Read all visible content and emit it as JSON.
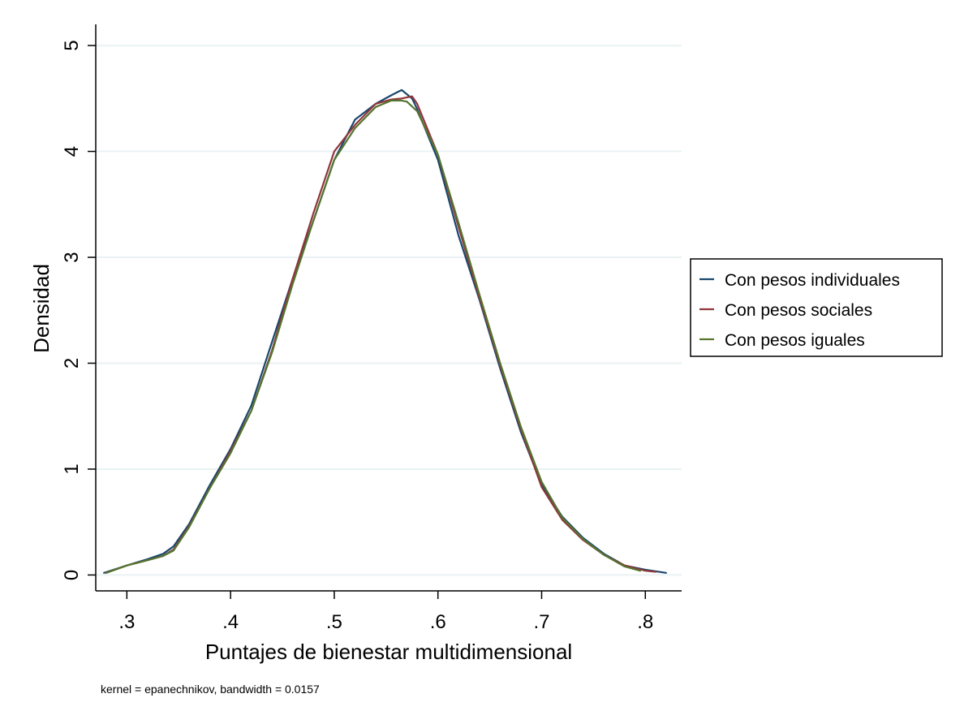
{
  "chart_data": {
    "type": "line",
    "title": "",
    "xlabel": "Puntajes de bienestar multidimensional",
    "ylabel": "Densidad",
    "xlim": [
      0.27,
      0.835
    ],
    "ylim": [
      -0.15,
      5.2
    ],
    "xticks": [
      0.3,
      0.4,
      0.5,
      0.6,
      0.7,
      0.8
    ],
    "xtick_labels": [
      ".3",
      ".4",
      ".5",
      ".6",
      ".7",
      ".8"
    ],
    "yticks": [
      0,
      1,
      2,
      3,
      4,
      5
    ],
    "ytick_labels": [
      "0",
      "1",
      "2",
      "3",
      "4",
      "5"
    ],
    "grid": "horizontal",
    "legend_position": "right",
    "note": "kernel = epanechnikov, bandwidth = 0.0157",
    "series": [
      {
        "name": "Con pesos individuales",
        "color": "#1a476f",
        "x": [
          0.278,
          0.3,
          0.32,
          0.335,
          0.345,
          0.36,
          0.38,
          0.4,
          0.42,
          0.44,
          0.46,
          0.48,
          0.5,
          0.52,
          0.54,
          0.555,
          0.565,
          0.575,
          0.58,
          0.6,
          0.62,
          0.64,
          0.66,
          0.68,
          0.7,
          0.72,
          0.74,
          0.76,
          0.78,
          0.8,
          0.82
        ],
        "y": [
          0.02,
          0.09,
          0.15,
          0.2,
          0.27,
          0.48,
          0.85,
          1.19,
          1.6,
          2.2,
          2.8,
          3.35,
          3.92,
          4.3,
          4.45,
          4.53,
          4.58,
          4.5,
          4.4,
          3.92,
          3.2,
          2.6,
          1.95,
          1.35,
          0.85,
          0.55,
          0.35,
          0.2,
          0.09,
          0.05,
          0.02
        ]
      },
      {
        "name": "Con pesos sociales",
        "color": "#90353b",
        "x": [
          0.28,
          0.3,
          0.32,
          0.335,
          0.345,
          0.36,
          0.38,
          0.4,
          0.42,
          0.44,
          0.46,
          0.48,
          0.5,
          0.52,
          0.54,
          0.555,
          0.565,
          0.575,
          0.58,
          0.6,
          0.62,
          0.64,
          0.66,
          0.68,
          0.7,
          0.72,
          0.74,
          0.76,
          0.78,
          0.8,
          0.81
        ],
        "y": [
          0.02,
          0.09,
          0.14,
          0.18,
          0.24,
          0.46,
          0.82,
          1.17,
          1.55,
          2.12,
          2.8,
          3.42,
          4.0,
          4.25,
          4.45,
          4.49,
          4.5,
          4.52,
          4.45,
          3.97,
          3.28,
          2.62,
          1.98,
          1.38,
          0.83,
          0.52,
          0.33,
          0.19,
          0.09,
          0.04,
          0.03
        ]
      },
      {
        "name": "Con pesos iguales",
        "color": "#55752f",
        "x": [
          0.28,
          0.3,
          0.32,
          0.335,
          0.345,
          0.36,
          0.38,
          0.4,
          0.42,
          0.44,
          0.46,
          0.48,
          0.5,
          0.52,
          0.54,
          0.555,
          0.565,
          0.57,
          0.58,
          0.6,
          0.62,
          0.64,
          0.66,
          0.68,
          0.7,
          0.72,
          0.74,
          0.76,
          0.78,
          0.795
        ],
        "y": [
          0.02,
          0.09,
          0.14,
          0.18,
          0.23,
          0.45,
          0.82,
          1.15,
          1.55,
          2.1,
          2.75,
          3.35,
          3.92,
          4.22,
          4.42,
          4.48,
          4.48,
          4.47,
          4.38,
          3.97,
          3.32,
          2.65,
          2.0,
          1.4,
          0.88,
          0.54,
          0.34,
          0.19,
          0.08,
          0.04
        ]
      }
    ]
  }
}
